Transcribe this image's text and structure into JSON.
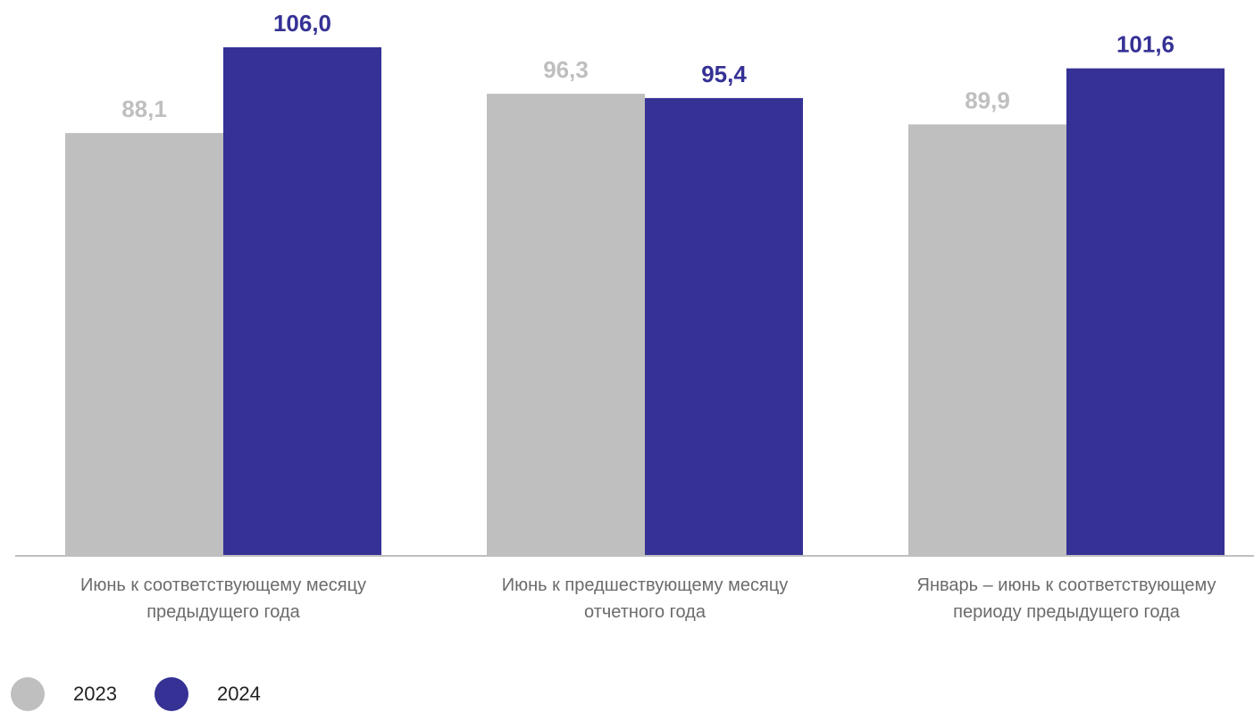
{
  "chart_data": {
    "type": "bar",
    "categories": [
      [
        "Июнь к соответствующему месяцу",
        "предыдущего года"
      ],
      [
        "Июнь к предшествующему месяцу",
        "отчетного года"
      ],
      [
        "Январь – июнь к соответствующему",
        "периоду предыдущего года"
      ]
    ],
    "series": [
      {
        "name": "2023",
        "color": "#bfbfbf",
        "label_color": "#bfbfbf",
        "values": [
          88.1,
          96.3,
          89.9
        ],
        "labels": [
          "88,1",
          "96,3",
          "89,9"
        ]
      },
      {
        "name": "2024",
        "color": "#353195",
        "label_color": "#353195",
        "values": [
          106.0,
          95.4,
          101.6
        ],
        "labels": [
          "106,0",
          "95,4",
          "101,6"
        ]
      }
    ],
    "ylim": [
      0,
      106.0
    ],
    "grid": false,
    "legend_position": "bottom-left",
    "axis_color": "#bfbfbf"
  }
}
